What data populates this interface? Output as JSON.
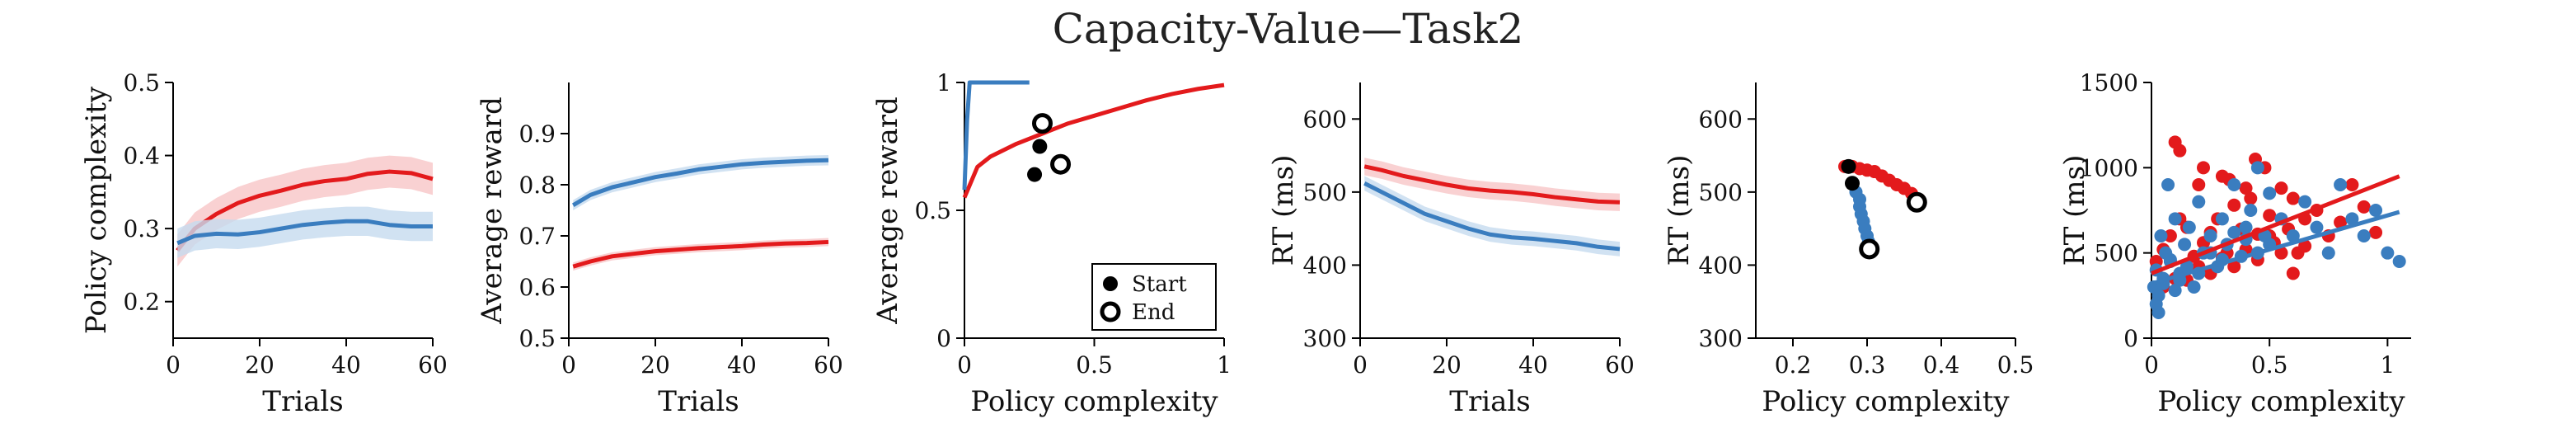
{
  "figure": {
    "title": "Capacity-Value—Task2",
    "colors": {
      "red": "#e31a1c",
      "blue": "#3a7dbf",
      "red_band": "#f7c6c7",
      "blue_band": "#c6dbef",
      "axis": "#000000"
    }
  },
  "chart_data": [
    {
      "type": "line",
      "xlabel": "Trials",
      "ylabel": "Policy complexity",
      "xlim": [
        0,
        60
      ],
      "ylim": [
        0.15,
        0.5
      ],
      "xticks": [
        "0",
        "20",
        "40",
        "60"
      ],
      "yticks": [
        "0.2",
        "0.3",
        "0.4",
        "0.5"
      ],
      "x": [
        1,
        5,
        10,
        15,
        20,
        25,
        30,
        35,
        40,
        45,
        50,
        55,
        60
      ],
      "series": [
        {
          "color": "red",
          "values": [
            0.27,
            0.3,
            0.32,
            0.335,
            0.345,
            0.352,
            0.36,
            0.365,
            0.368,
            0.375,
            0.378,
            0.376,
            0.368
          ],
          "band": 0.022
        },
        {
          "color": "blue",
          "values": [
            0.28,
            0.29,
            0.293,
            0.292,
            0.295,
            0.3,
            0.305,
            0.308,
            0.31,
            0.31,
            0.305,
            0.303,
            0.303
          ],
          "band": 0.02
        }
      ]
    },
    {
      "type": "line",
      "xlabel": "Trials",
      "ylabel": "Average reward",
      "xlim": [
        0,
        60
      ],
      "ylim": [
        0.5,
        1.0
      ],
      "xticks": [
        "0",
        "20",
        "40",
        "60"
      ],
      "yticks": [
        "0.5",
        "0.6",
        "0.7",
        "0.8",
        "0.9"
      ],
      "x": [
        1,
        5,
        10,
        15,
        20,
        25,
        30,
        35,
        40,
        45,
        50,
        55,
        60
      ],
      "series": [
        {
          "color": "red",
          "values": [
            0.64,
            0.65,
            0.66,
            0.665,
            0.67,
            0.673,
            0.676,
            0.678,
            0.68,
            0.683,
            0.685,
            0.686,
            0.688
          ],
          "band": 0.008
        },
        {
          "color": "blue",
          "values": [
            0.76,
            0.78,
            0.795,
            0.805,
            0.815,
            0.822,
            0.83,
            0.835,
            0.84,
            0.843,
            0.845,
            0.847,
            0.848
          ],
          "band": 0.01
        }
      ]
    },
    {
      "type": "line",
      "xlabel": "Policy complexity",
      "ylabel": "Average reward",
      "xlim": [
        0,
        1
      ],
      "ylim": [
        0,
        1
      ],
      "xticks": [
        "0",
        "0.5",
        "1"
      ],
      "yticks": [
        "0",
        "0.5",
        "1"
      ],
      "series": [
        {
          "color": "red",
          "x": [
            0,
            0.05,
            0.1,
            0.2,
            0.3,
            0.4,
            0.5,
            0.6,
            0.7,
            0.8,
            0.9,
            1.0
          ],
          "values": [
            0.55,
            0.67,
            0.71,
            0.76,
            0.8,
            0.84,
            0.87,
            0.9,
            0.93,
            0.955,
            0.975,
            0.99
          ]
        },
        {
          "color": "blue",
          "x": [
            0,
            0.01,
            0.02,
            0.02,
            0.05,
            0.1,
            0.15,
            0.2,
            0.25
          ],
          "values": [
            0.58,
            0.85,
            1.0,
            1.0,
            1.0,
            1.0,
            1.0,
            1.0,
            1.0
          ]
        }
      ],
      "points": [
        {
          "color": "blue",
          "x": 0.29,
          "y": 0.75,
          "marker": "start"
        },
        {
          "color": "blue",
          "x": 0.3,
          "y": 0.84,
          "marker": "end"
        },
        {
          "color": "red",
          "x": 0.27,
          "y": 0.64,
          "marker": "start"
        },
        {
          "color": "red",
          "x": 0.37,
          "y": 0.68,
          "marker": "end"
        }
      ],
      "legend": {
        "placement": "lower-right",
        "entries": [
          "Start",
          "End"
        ]
      }
    },
    {
      "type": "line",
      "xlabel": "Trials",
      "ylabel": "RT (ms)",
      "xlim": [
        0,
        60
      ],
      "ylim": [
        300,
        650
      ],
      "xticks": [
        "0",
        "20",
        "40",
        "60"
      ],
      "yticks": [
        "300",
        "400",
        "500",
        "600"
      ],
      "x": [
        1,
        5,
        10,
        15,
        20,
        25,
        30,
        35,
        40,
        45,
        50,
        55,
        60
      ],
      "series": [
        {
          "color": "red",
          "values": [
            535,
            530,
            522,
            516,
            510,
            505,
            502,
            500,
            497,
            493,
            490,
            487,
            486
          ],
          "band": 12
        },
        {
          "color": "blue",
          "values": [
            512,
            500,
            485,
            470,
            460,
            450,
            442,
            438,
            436,
            433,
            430,
            425,
            422
          ],
          "band": 10
        }
      ]
    },
    {
      "type": "scatter",
      "xlabel": "Policy complexity",
      "ylabel": "RT (ms)",
      "xlim": [
        0.15,
        0.5
      ],
      "ylim": [
        300,
        650
      ],
      "xticks": [
        "0.2",
        "0.3",
        "0.4",
        "0.5"
      ],
      "yticks": [
        "300",
        "400",
        "500",
        "600"
      ],
      "series": [
        {
          "color": "red",
          "x": [
            0.27,
            0.28,
            0.29,
            0.3,
            0.31,
            0.32,
            0.33,
            0.34,
            0.35,
            0.36,
            0.37
          ],
          "values": [
            535,
            535,
            532,
            530,
            528,
            522,
            516,
            510,
            505,
            498,
            490
          ]
        },
        {
          "color": "blue",
          "x": [
            0.28,
            0.285,
            0.29,
            0.29,
            0.292,
            0.295,
            0.297,
            0.3,
            0.302,
            0.304
          ],
          "values": [
            512,
            500,
            490,
            480,
            470,
            460,
            450,
            440,
            432,
            425
          ]
        }
      ],
      "points": [
        {
          "color": "black",
          "x": 0.275,
          "y": 535,
          "marker": "start"
        },
        {
          "color": "black",
          "x": 0.28,
          "y": 512,
          "marker": "start"
        },
        {
          "color": "red",
          "x": 0.367,
          "y": 486,
          "marker": "end"
        },
        {
          "color": "blue",
          "x": 0.303,
          "y": 422,
          "marker": "end"
        }
      ]
    },
    {
      "type": "scatter",
      "xlabel": "Policy complexity",
      "ylabel": "RT (ms)",
      "xlim": [
        0,
        1.1
      ],
      "ylim": [
        0,
        1500
      ],
      "xticks": [
        "0",
        "0.5",
        "1"
      ],
      "yticks": [
        "0",
        "500",
        "1000",
        "1500"
      ],
      "series": [
        {
          "color": "red",
          "x": [
            0.02,
            0.05,
            0.08,
            0.1,
            0.12,
            0.15,
            0.18,
            0.2,
            0.22,
            0.25,
            0.28,
            0.3,
            0.32,
            0.35,
            0.38,
            0.4,
            0.42,
            0.45,
            0.48,
            0.5,
            0.52,
            0.55,
            0.58,
            0.6,
            0.62,
            0.65,
            0.7,
            0.75,
            0.8,
            0.85,
            0.9,
            0.95,
            0.1,
            0.2,
            0.3,
            0.4,
            0.5,
            0.6,
            0.05,
            0.15,
            0.25,
            0.35,
            0.45,
            0.55,
            0.65,
            0.12,
            0.22,
            0.33,
            0.44
          ],
          "values": [
            450,
            520,
            600,
            1150,
            700,
            650,
            480,
            900,
            560,
            620,
            700,
            950,
            500,
            780,
            640,
            880,
            820,
            610,
            1000,
            720,
            560,
            880,
            640,
            820,
            500,
            700,
            750,
            600,
            680,
            900,
            770,
            620,
            350,
            420,
            470,
            520,
            600,
            380,
            300,
            340,
            380,
            420,
            460,
            500,
            540,
            1100,
            1000,
            930,
            1050
          ]
        },
        {
          "color": "blue",
          "x": [
            0.01,
            0.02,
            0.03,
            0.04,
            0.05,
            0.06,
            0.07,
            0.08,
            0.1,
            0.12,
            0.14,
            0.16,
            0.18,
            0.2,
            0.22,
            0.25,
            0.28,
            0.3,
            0.32,
            0.35,
            0.38,
            0.4,
            0.42,
            0.45,
            0.48,
            0.5,
            0.55,
            0.6,
            0.65,
            0.7,
            0.75,
            0.8,
            0.85,
            0.9,
            0.95,
            1.0,
            1.05,
            0.02,
            0.03,
            0.05,
            0.08,
            0.1,
            0.12,
            0.15,
            0.2,
            0.25,
            0.3,
            0.35,
            0.4,
            0.45,
            0.5
          ],
          "values": [
            300,
            400,
            250,
            600,
            350,
            500,
            900,
            450,
            700,
            380,
            550,
            650,
            300,
            800,
            500,
            600,
            420,
            700,
            550,
            900,
            480,
            650,
            750,
            500,
            600,
            550,
            700,
            600,
            800,
            650,
            500,
            900,
            700,
            600,
            750,
            500,
            450,
            200,
            150,
            320,
            460,
            280,
            340,
            420,
            380,
            500,
            460,
            620,
            580,
            1000,
            850
          ]
        }
      ],
      "fits": [
        {
          "color": "red",
          "x": [
            0,
            1.05
          ],
          "values": [
            380,
            950
          ]
        },
        {
          "color": "blue",
          "x": [
            0,
            1.05
          ],
          "values": [
            320,
            740
          ]
        }
      ]
    }
  ]
}
